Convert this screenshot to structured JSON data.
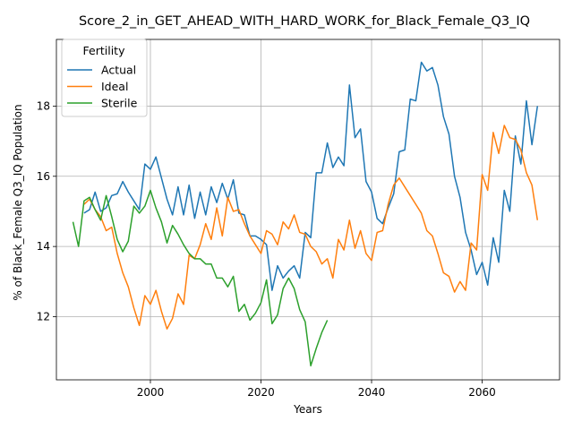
{
  "chart_data": {
    "type": "line",
    "title": "Score_2_in_GET_AHEAD_WITH_HARD_WORK_for_Black_Female_Q3_IQ",
    "xlabel": "Years",
    "ylabel": "% of Black_Female Q3_IQ Population",
    "xlim": [
      1983,
      2074
    ],
    "ylim": [
      10.2,
      19.9
    ],
    "xticks": [
      2000,
      2020,
      2040,
      2060
    ],
    "xtick_labels": [
      "2000",
      "2020",
      "2040",
      "2060"
    ],
    "yticks": [
      12,
      14,
      16,
      18
    ],
    "ytick_labels": [
      "12",
      "14",
      "16",
      "18"
    ],
    "grid": true,
    "legend": {
      "title": "Fertility",
      "placement": "top-left"
    },
    "series": [
      {
        "name": "Actual",
        "color": "#1f77b4",
        "x": [
          1988,
          1989,
          1990,
          1991,
          1992,
          1993,
          1994,
          1995,
          1996,
          1997,
          1998,
          1999,
          2000,
          2001,
          2002,
          2003,
          2004,
          2005,
          2006,
          2007,
          2008,
          2009,
          2010,
          2011,
          2012,
          2013,
          2014,
          2015,
          2016,
          2017,
          2018,
          2019,
          2020,
          2021,
          2022,
          2023,
          2024,
          2025,
          2026,
          2027,
          2028,
          2029,
          2030,
          2031,
          2032,
          2033,
          2034,
          2035,
          2036,
          2037,
          2038,
          2039,
          2040,
          2041,
          2042,
          2043,
          2044,
          2045,
          2046,
          2047,
          2048,
          2049,
          2050,
          2051,
          2052,
          2053,
          2054,
          2055,
          2056,
          2057,
          2058,
          2059,
          2060,
          2061,
          2062,
          2063,
          2064,
          2065,
          2066,
          2067,
          2068,
          2069,
          2070
        ],
        "y": [
          14.95,
          15.05,
          15.55,
          15.0,
          15.1,
          15.45,
          15.5,
          15.85,
          15.55,
          15.3,
          15.05,
          16.35,
          16.2,
          16.55,
          15.95,
          15.35,
          14.9,
          15.7,
          14.9,
          15.75,
          14.8,
          15.55,
          14.9,
          15.7,
          15.25,
          15.8,
          15.35,
          15.9,
          14.95,
          14.9,
          14.3,
          14.3,
          14.2,
          14.05,
          12.75,
          13.45,
          13.1,
          13.3,
          13.45,
          13.1,
          14.4,
          14.25,
          16.1,
          16.1,
          16.95,
          16.25,
          16.55,
          16.3,
          18.6,
          17.1,
          17.35,
          15.85,
          15.55,
          14.8,
          14.65,
          15.1,
          15.5,
          16.7,
          16.75,
          18.2,
          18.15,
          19.25,
          19.0,
          19.1,
          18.6,
          17.7,
          17.2,
          16.0,
          15.4,
          14.4,
          13.9,
          13.2,
          13.55,
          12.9,
          14.25,
          13.55,
          15.6,
          15.0,
          17.15,
          16.35,
          18.15,
          16.9,
          18.0
        ]
      },
      {
        "name": "Ideal",
        "color": "#ff7f0e",
        "x": [
          1988,
          1989,
          1990,
          1991,
          1992,
          1993,
          1994,
          1995,
          1996,
          1997,
          1998,
          1999,
          2000,
          2001,
          2002,
          2003,
          2004,
          2005,
          2006,
          2007,
          2008,
          2009,
          2010,
          2011,
          2012,
          2013,
          2014,
          2015,
          2016,
          2017,
          2018,
          2019,
          2020,
          2021,
          2022,
          2023,
          2024,
          2025,
          2026,
          2027,
          2028,
          2029,
          2030,
          2031,
          2032,
          2033,
          2034,
          2035,
          2036,
          2037,
          2038,
          2039,
          2040,
          2041,
          2042,
          2043,
          2044,
          2045,
          2046,
          2047,
          2048,
          2049,
          2050,
          2051,
          2052,
          2053,
          2054,
          2055,
          2056,
          2057,
          2058,
          2059,
          2060,
          2061,
          2062,
          2063,
          2064,
          2065,
          2066,
          2067,
          2068,
          2069,
          2070
        ],
        "y": [
          15.2,
          15.35,
          15.05,
          14.85,
          14.45,
          14.55,
          13.8,
          13.25,
          12.85,
          12.25,
          11.75,
          12.6,
          12.35,
          12.75,
          12.15,
          11.65,
          11.95,
          12.65,
          12.35,
          13.75,
          13.65,
          14.05,
          14.65,
          14.2,
          15.1,
          14.3,
          15.4,
          15.0,
          15.05,
          14.65,
          14.3,
          14.05,
          13.8,
          14.45,
          14.35,
          14.05,
          14.7,
          14.5,
          14.9,
          14.4,
          14.35,
          14.0,
          13.85,
          13.5,
          13.65,
          13.1,
          14.2,
          13.9,
          14.75,
          13.95,
          14.45,
          13.8,
          13.6,
          14.4,
          14.45,
          15.2,
          15.75,
          15.95,
          15.7,
          15.45,
          15.2,
          14.95,
          14.45,
          14.3,
          13.8,
          13.25,
          13.15,
          12.7,
          13.0,
          12.75,
          14.1,
          13.9,
          16.05,
          15.6,
          17.25,
          16.65,
          17.45,
          17.1,
          17.05,
          16.75,
          16.1,
          15.75,
          14.75
        ]
      },
      {
        "name": "Sterile",
        "color": "#2ca02c",
        "x": [
          1986,
          1987,
          1988,
          1989,
          1990,
          1991,
          1992,
          1993,
          1994,
          1995,
          1996,
          1997,
          1998,
          1999,
          2000,
          2001,
          2002,
          2003,
          2004,
          2005,
          2006,
          2007,
          2008,
          2009,
          2010,
          2011,
          2012,
          2013,
          2014,
          2015,
          2016,
          2017,
          2018,
          2019,
          2020,
          2021,
          2022,
          2023,
          2024,
          2025,
          2026,
          2027,
          2028,
          2029,
          2030,
          2031,
          2032
        ],
        "y": [
          14.7,
          14.0,
          15.3,
          15.4,
          15.05,
          14.75,
          15.45,
          14.85,
          14.2,
          13.85,
          14.15,
          15.15,
          14.95,
          15.15,
          15.6,
          15.1,
          14.7,
          14.1,
          14.6,
          14.35,
          14.05,
          13.8,
          13.65,
          13.65,
          13.5,
          13.5,
          13.1,
          13.1,
          12.85,
          13.15,
          12.15,
          12.35,
          11.9,
          12.1,
          12.4,
          13.05,
          11.8,
          12.05,
          12.8,
          13.1,
          12.8,
          12.2,
          11.85,
          10.6,
          11.1,
          11.55,
          11.9
        ]
      }
    ]
  }
}
